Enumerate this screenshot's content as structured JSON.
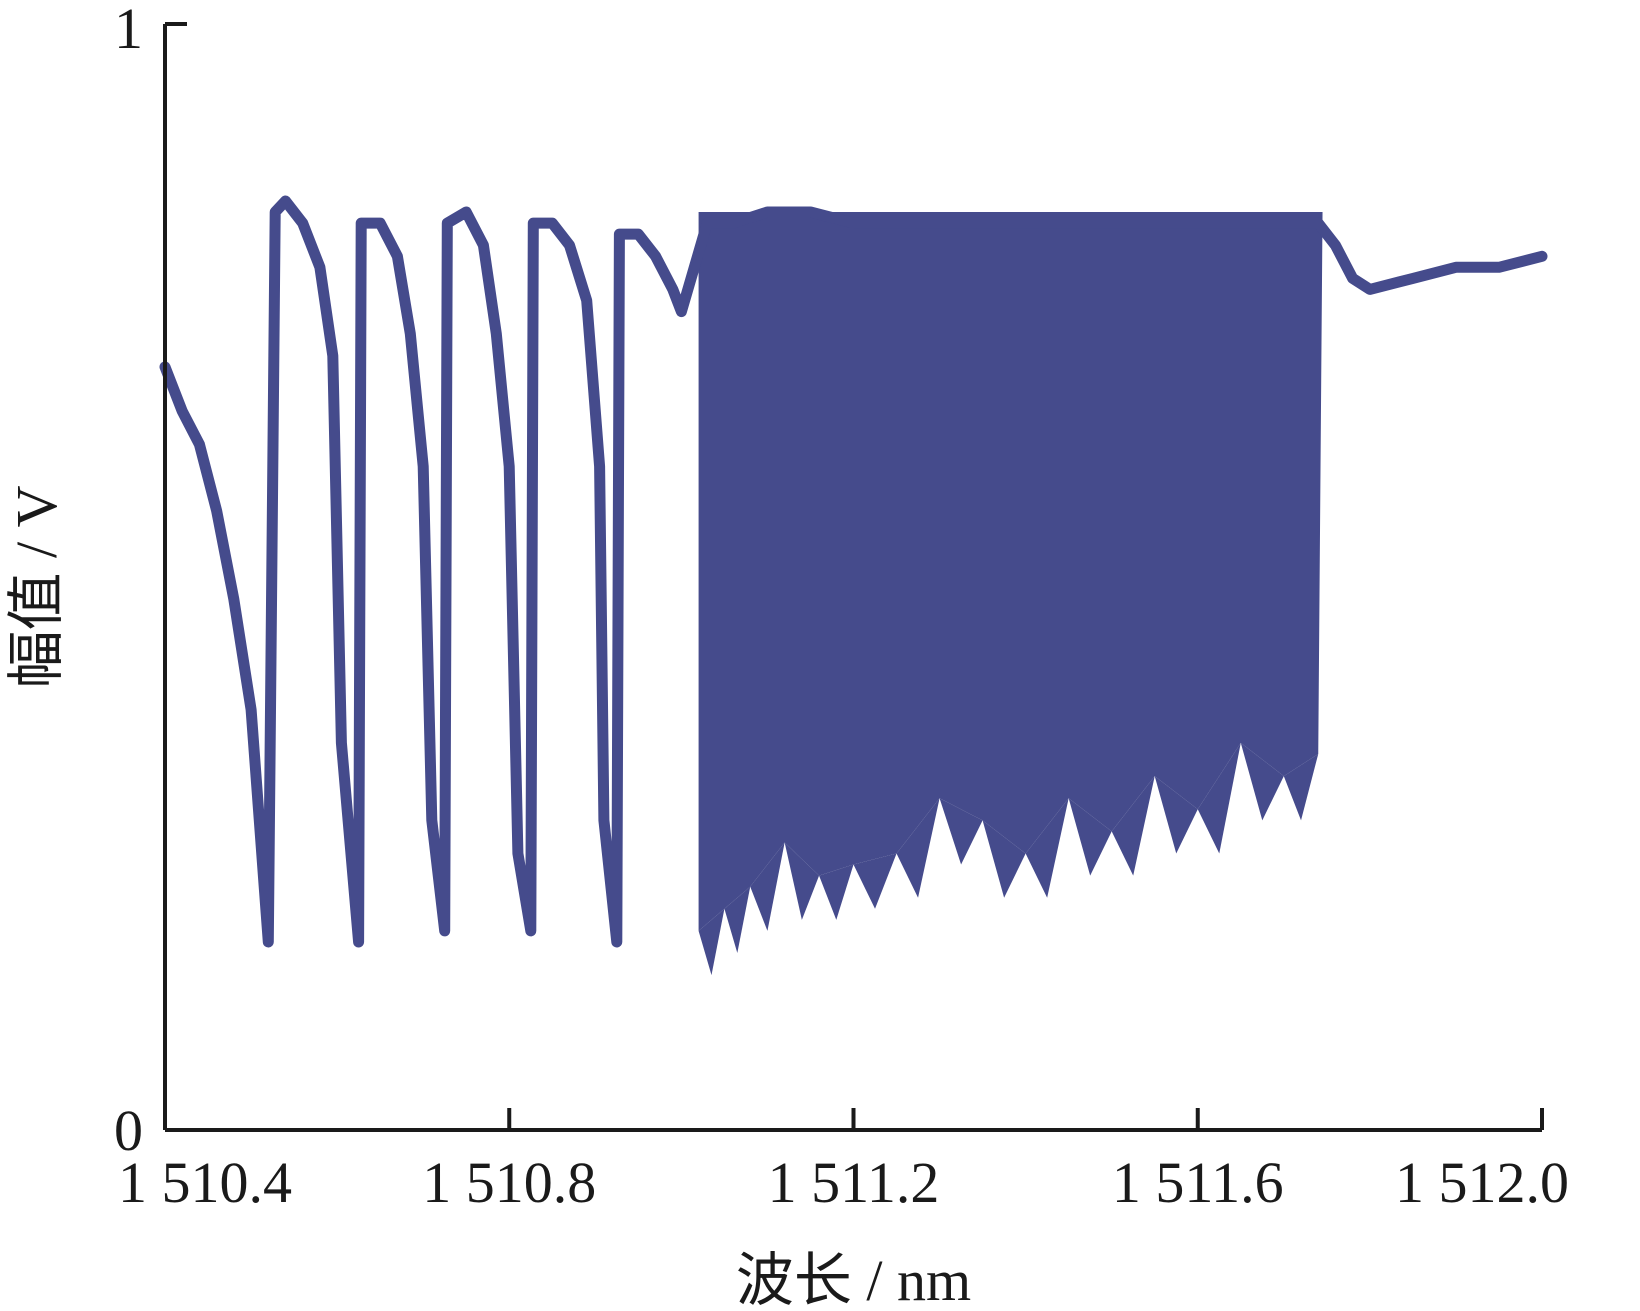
{
  "chart_data": {
    "type": "line",
    "title": "",
    "xlabel": "波长 / nm",
    "ylabel": "幅值 / V",
    "xlim": [
      1510.4,
      1512.0
    ],
    "ylim": [
      0,
      1
    ],
    "grid": false,
    "x_ticks": [
      {
        "value": 1510.4,
        "label": "1 510.4"
      },
      {
        "value": 1510.8,
        "label": "1 510.8"
      },
      {
        "value": 1511.2,
        "label": "1 511.2"
      },
      {
        "value": 1511.6,
        "label": "1 511.6"
      },
      {
        "value": 1512.0,
        "label": "1 512.0"
      }
    ],
    "y_ticks": [
      {
        "value": 0,
        "label": "0"
      },
      {
        "value": 1,
        "label": "1"
      }
    ],
    "series": [
      {
        "color": "#454b8c",
        "line_trace": [
          [
            1510.4,
            0.69
          ],
          [
            1510.42,
            0.65
          ],
          [
            1510.44,
            0.62
          ],
          [
            1510.46,
            0.56
          ],
          [
            1510.48,
            0.48
          ],
          [
            1510.5,
            0.38
          ],
          [
            1510.52,
            0.17
          ],
          [
            1510.528,
            0.83
          ],
          [
            1510.54,
            0.84
          ],
          [
            1510.56,
            0.82
          ],
          [
            1510.58,
            0.78
          ],
          [
            1510.595,
            0.7
          ],
          [
            1510.605,
            0.35
          ],
          [
            1510.625,
            0.17
          ],
          [
            1510.628,
            0.82
          ],
          [
            1510.65,
            0.82
          ],
          [
            1510.67,
            0.79
          ],
          [
            1510.685,
            0.72
          ],
          [
            1510.7,
            0.6
          ],
          [
            1510.71,
            0.28
          ],
          [
            1510.725,
            0.18
          ],
          [
            1510.728,
            0.82
          ],
          [
            1510.75,
            0.83
          ],
          [
            1510.77,
            0.8
          ],
          [
            1510.785,
            0.72
          ],
          [
            1510.8,
            0.6
          ],
          [
            1510.81,
            0.25
          ],
          [
            1510.825,
            0.18
          ],
          [
            1510.828,
            0.82
          ],
          [
            1510.85,
            0.82
          ],
          [
            1510.87,
            0.8
          ],
          [
            1510.89,
            0.75
          ],
          [
            1510.905,
            0.6
          ],
          [
            1510.91,
            0.28
          ],
          [
            1510.925,
            0.17
          ],
          [
            1510.928,
            0.81
          ],
          [
            1510.95,
            0.81
          ],
          [
            1510.97,
            0.79
          ],
          [
            1510.99,
            0.76
          ],
          [
            1511.0,
            0.74
          ],
          [
            1511.015,
            0.78
          ],
          [
            1511.03,
            0.82
          ],
          [
            1511.06,
            0.82
          ],
          [
            1511.1,
            0.83
          ],
          [
            1511.15,
            0.83
          ],
          [
            1511.2,
            0.82
          ],
          [
            1511.3,
            0.82
          ],
          [
            1511.4,
            0.82
          ],
          [
            1511.5,
            0.82
          ],
          [
            1511.6,
            0.82
          ],
          [
            1511.7,
            0.82
          ],
          [
            1511.74,
            0.82
          ],
          [
            1511.76,
            0.8
          ],
          [
            1511.78,
            0.77
          ],
          [
            1511.8,
            0.76
          ],
          [
            1511.85,
            0.77
          ],
          [
            1511.9,
            0.78
          ],
          [
            1511.95,
            0.78
          ],
          [
            1512.0,
            0.79
          ]
        ],
        "oscillation_band": {
          "x_range": [
            1511.02,
            1511.745
          ],
          "upper": 0.83,
          "lower_trace": [
            [
              1511.02,
              0.18
            ],
            [
              1511.05,
              0.2
            ],
            [
              1511.08,
              0.22
            ],
            [
              1511.12,
              0.26
            ],
            [
              1511.16,
              0.23
            ],
            [
              1511.2,
              0.24
            ],
            [
              1511.25,
              0.25
            ],
            [
              1511.3,
              0.3
            ],
            [
              1511.35,
              0.28
            ],
            [
              1511.4,
              0.25
            ],
            [
              1511.45,
              0.3
            ],
            [
              1511.5,
              0.27
            ],
            [
              1511.55,
              0.32
            ],
            [
              1511.6,
              0.29
            ],
            [
              1511.65,
              0.35
            ],
            [
              1511.7,
              0.32
            ],
            [
              1511.74,
              0.34
            ]
          ]
        }
      }
    ]
  }
}
